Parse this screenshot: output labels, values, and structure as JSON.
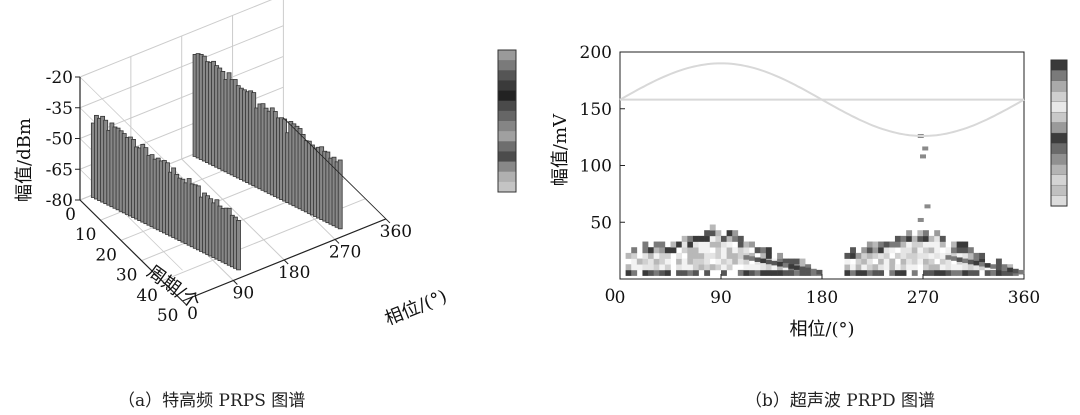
{
  "captions": {
    "left": "（a）特高频 PRPS 图谱",
    "right": "（b）超声波 PRPD 图谱"
  },
  "colors": {
    "bar_fill": "#888888",
    "bar_stroke": "#333333",
    "grid": "#cccccc",
    "sine": "#d8d8d8"
  },
  "chart_data": [
    {
      "type": "bar",
      "subtype": "3d-prps",
      "ylabel": "幅值/dBm",
      "ylim": [
        -80,
        -20
      ],
      "yticks": [
        "-20",
        "-35",
        "-50",
        "-65",
        "-80"
      ],
      "period_label": "周期/个",
      "period_range": [
        0,
        50
      ],
      "period_ticks": [
        "0",
        "10",
        "20",
        "30",
        "40",
        "50"
      ],
      "phase_label": "相位/(°)",
      "phase_range": [
        0,
        360
      ],
      "phase_ticks": [
        "0",
        "90",
        "180",
        "270",
        "360"
      ],
      "colorbar": true,
      "clusters": [
        {
          "phase_start": 20,
          "phase_end": 110,
          "amp_start": -38,
          "amp_end": -55
        },
        {
          "phase_start": 200,
          "phase_end": 290,
          "amp_start": -28,
          "amp_end": -48
        }
      ],
      "periods_per_cluster": 50
    },
    {
      "type": "heatmap",
      "subtype": "prpd",
      "xlabel": "相位/(°)",
      "ylabel": "幅值/mV",
      "xlim": [
        0,
        360
      ],
      "ylim": [
        0,
        200
      ],
      "xticks": [
        "0",
        "90",
        "180",
        "270",
        "360"
      ],
      "yticks": [
        "50",
        "100",
        "150",
        "200"
      ],
      "colorbar": true,
      "reference_sine": {
        "offset": 158,
        "amplitude": 32,
        "phase0": 0
      },
      "clusters": [
        {
          "phase_start": 5,
          "phase_end": 180,
          "amp_min": 3,
          "amp_max": 48,
          "peak_phase": 60
        },
        {
          "phase_start": 200,
          "phase_end": 360,
          "amp_min": 3,
          "amp_max": 48,
          "peak_phase": 240
        }
      ],
      "scatter": [
        {
          "phase": 268,
          "amp": 126
        },
        {
          "phase": 272,
          "amp": 115
        },
        {
          "phase": 270,
          "amp": 108
        },
        {
          "phase": 274,
          "amp": 64
        },
        {
          "phase": 268,
          "amp": 52
        }
      ]
    }
  ]
}
